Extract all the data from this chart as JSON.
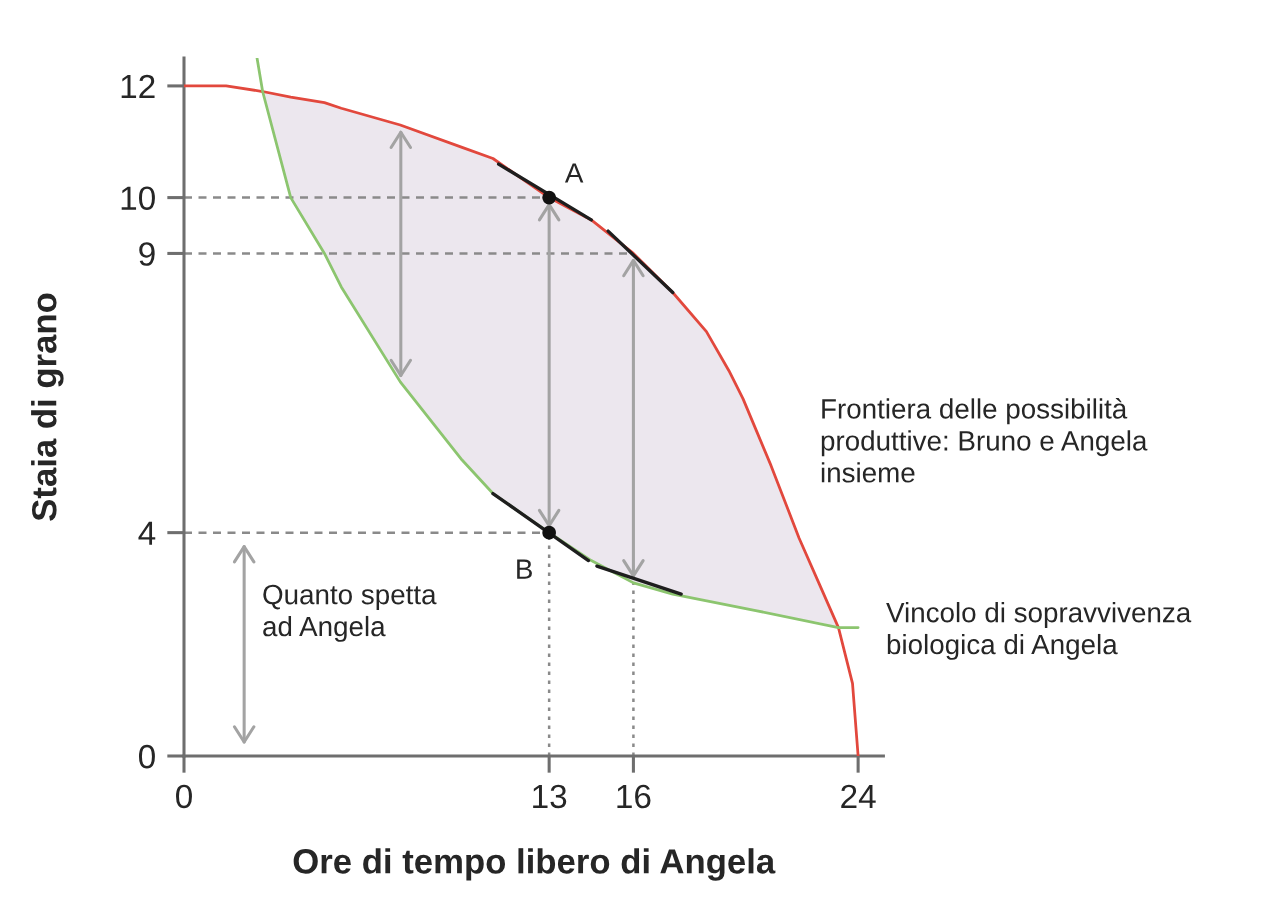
{
  "chart_data": {
    "type": "line",
    "xlabel": "Ore di tempo libero di Angela",
    "ylabel": "Staia di grano",
    "xlim": [
      0,
      24.9
    ],
    "ylim": [
      0,
      12.5
    ],
    "xticks": [
      0,
      13,
      16,
      24
    ],
    "yticks": [
      0,
      4,
      9,
      10,
      12
    ],
    "series": [
      {
        "name": "Frontiera delle possibilità produttive: Bruno e Angela insieme",
        "color": "#e2483d",
        "x": [
          0,
          1.5,
          2.8,
          3.8,
          5,
          5.6,
          7.7,
          9.9,
          11,
          13,
          14.5,
          16,
          17.4,
          18.6,
          19.4,
          19.9,
          20.4,
          20.9,
          21.9,
          22.6,
          23.3,
          23.8,
          24
        ],
        "values": [
          12,
          12,
          11.9,
          11.8,
          11.7,
          11.6,
          11.3,
          10.9,
          10.7,
          10,
          9.6,
          9,
          8.3,
          7.6,
          6.9,
          6.4,
          5.8,
          5.2,
          3.9,
          3.1,
          2.3,
          1.3,
          0
        ],
        "lower": [
          null,
          null,
          11.9,
          10,
          9,
          8.4,
          6.7,
          5.3,
          4.7,
          4,
          3.5,
          3.1,
          2.9,
          2.8,
          2.7,
          2.65,
          2.6,
          2.55,
          2.45,
          2.4,
          2.3,
          null,
          null
        ],
        "upper": [
          null,
          null,
          11.9,
          11.8,
          11.7,
          11.6,
          11.3,
          10.9,
          10.7,
          10,
          9.6,
          9,
          8.3,
          7.6,
          6.9,
          6.4,
          5.8,
          5.2,
          3.9,
          3.1,
          2.3,
          null,
          null
        ]
      },
      {
        "name": "Vincolo di sopravvivenza biologica di Angela",
        "color": "#8cc56f",
        "x": [
          2.6,
          2.8,
          3.8,
          5,
          5.6,
          7.7,
          9.9,
          11,
          13,
          14.5,
          16,
          17.4,
          20.4,
          23.3,
          24
        ],
        "values": [
          12.5,
          11.9,
          10,
          9,
          8.4,
          6.7,
          5.3,
          4.7,
          4,
          3.5,
          3.1,
          2.9,
          2.6,
          2.3,
          2.3
        ]
      },
      {
        "type": "line",
        "color": "#1e1e1e",
        "x": [
          11.2,
          14.5,
          null,
          15.1,
          17.4,
          null,
          11,
          14.4,
          null,
          14.7,
          17.7
        ],
        "values": [
          10.6,
          9.6,
          null,
          9.4,
          8.3,
          null,
          4.7,
          3.5,
          null,
          3.4,
          2.9
        ]
      },
      {
        "type": "scatter",
        "color": "#111111",
        "marker": "circle",
        "x": [
          13,
          13
        ],
        "values": [
          10,
          4
        ]
      }
    ],
    "ref_lines": [
      {
        "axis": "y",
        "value": 10,
        "color": "#8a8a8a",
        "line_style": "dashed"
      },
      {
        "axis": "y",
        "value": 9,
        "color": "#8a8a8a",
        "line_style": "dashed"
      },
      {
        "axis": "y",
        "value": 4,
        "color": "#8a8a8a",
        "line_style": "dashed"
      },
      {
        "axis": "x",
        "value": 13,
        "color": "#8a8a8a",
        "line_style": "dotted"
      },
      {
        "axis": "x",
        "value": 16,
        "color": "#8a8a8a",
        "line_style": "dotted"
      }
    ],
    "annotations": [
      {
        "text": "A",
        "x": 13,
        "y": 10
      },
      {
        "text": "B",
        "x": 13,
        "y": 4
      },
      "Quanto spetta ad Angela"
    ]
  }
}
